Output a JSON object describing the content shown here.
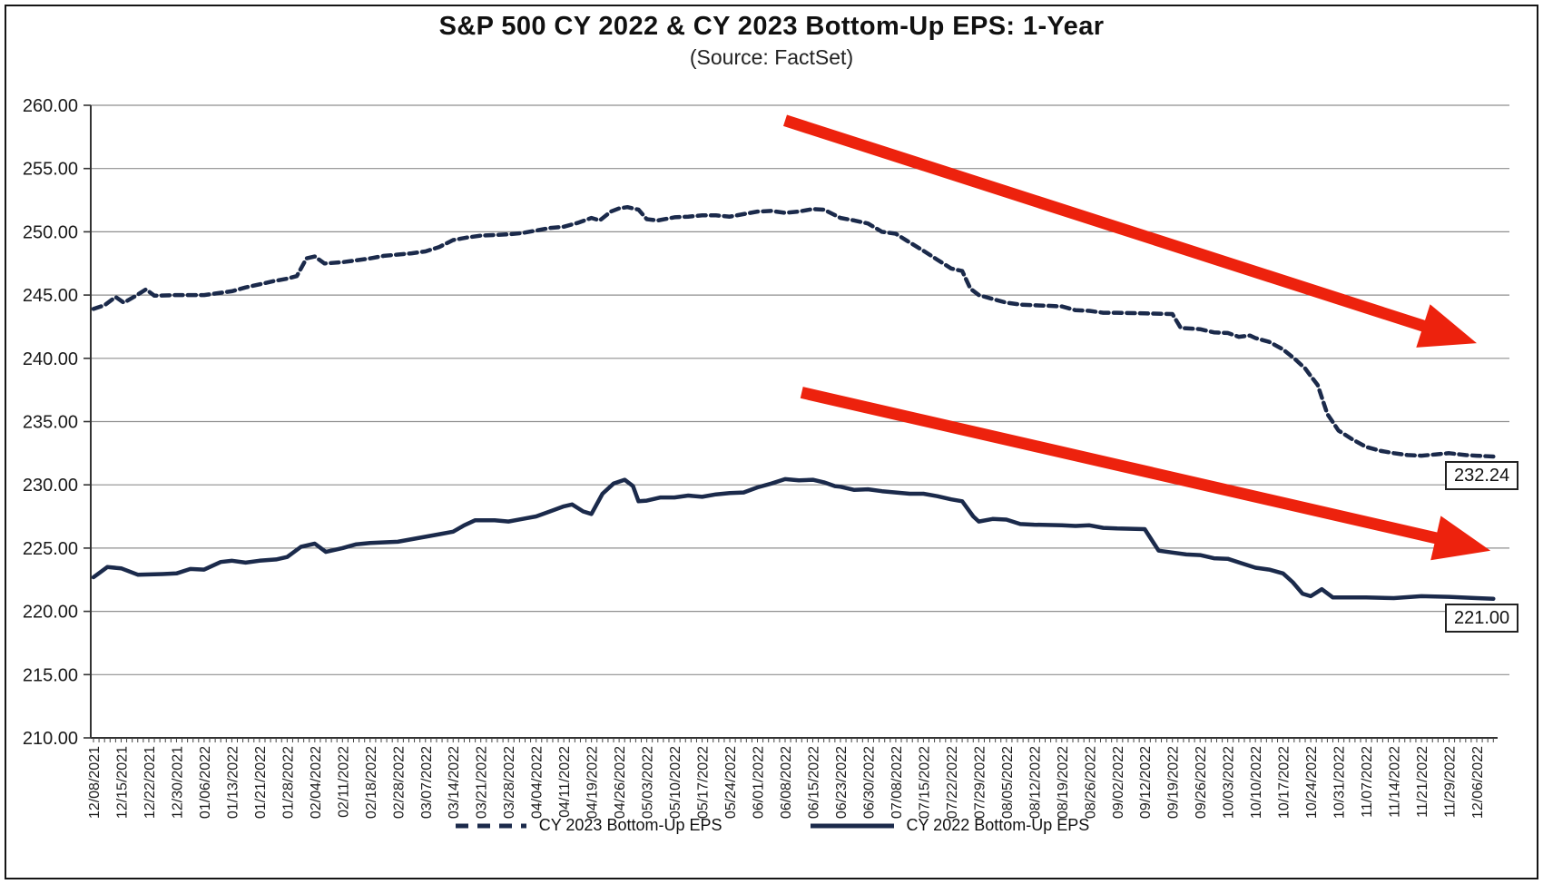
{
  "chart_data": {
    "type": "line",
    "title": "S&P 500 CY 2022 & CY 2023 Bottom-Up EPS: 1-Year",
    "subtitle": "(Source: FactSet)",
    "grid": "horizontal",
    "legend_position": "bottom",
    "y_axis": {
      "min": 210,
      "max": 260,
      "step": 5,
      "tick_format": "2dp",
      "tick_labels": [
        "260.00",
        "255.00",
        "250.00",
        "245.00",
        "240.00",
        "235.00",
        "230.00",
        "225.00",
        "220.00",
        "215.00",
        "210.00"
      ]
    },
    "x_axis": {
      "tick_style": "daily minor ticks, weekly labels rotated 90",
      "label_count": 51
    },
    "categories": [
      "12/08/2021",
      "12/15/2021",
      "12/22/2021",
      "12/30/2021",
      "01/06/2022",
      "01/13/2022",
      "01/21/2022",
      "01/28/2022",
      "02/04/2022",
      "02/11/2022",
      "02/18/2022",
      "02/28/2022",
      "03/07/2022",
      "03/14/2022",
      "03/21/2022",
      "03/28/2022",
      "04/04/2022",
      "04/11/2022",
      "04/19/2022",
      "04/26/2022",
      "05/03/2022",
      "05/10/2022",
      "05/17/2022",
      "05/24/2022",
      "06/01/2022",
      "06/08/2022",
      "06/15/2022",
      "06/23/2022",
      "06/30/2022",
      "07/08/2022",
      "07/15/2022",
      "07/22/2022",
      "07/29/2022",
      "08/05/2022",
      "08/12/2022",
      "08/19/2022",
      "08/26/2022",
      "09/02/2022",
      "09/12/2022",
      "09/19/2022",
      "09/26/2022",
      "10/03/2022",
      "10/10/2022",
      "10/17/2022",
      "10/24/2022",
      "10/31/2022",
      "11/07/2022",
      "11/14/2022",
      "11/21/2022",
      "11/29/2022",
      "12/06/2022"
    ],
    "series": [
      {
        "name": "CY 2023 Bottom-Up EPS",
        "style": "dashed",
        "color": "#1b2a4b",
        "end_label": "232.24",
        "points": [
          [
            1,
            243.9
          ],
          [
            1.4,
            244.2
          ],
          [
            1.8,
            244.85
          ],
          [
            2.1,
            244.4
          ],
          [
            2.5,
            244.9
          ],
          [
            2.9,
            245.45
          ],
          [
            3.2,
            244.95
          ],
          [
            4,
            245.0
          ],
          [
            5,
            245.0
          ],
          [
            5.5,
            245.15
          ],
          [
            6,
            245.3
          ],
          [
            6.5,
            245.6
          ],
          [
            7,
            245.85
          ],
          [
            7.5,
            246.1
          ],
          [
            8,
            246.3
          ],
          [
            8.35,
            246.5
          ],
          [
            8.7,
            247.9
          ],
          [
            9,
            248.05
          ],
          [
            9.35,
            247.5
          ],
          [
            10,
            247.6
          ],
          [
            10.5,
            247.75
          ],
          [
            11,
            247.9
          ],
          [
            11.5,
            248.1
          ],
          [
            12,
            248.2
          ],
          [
            12.5,
            248.3
          ],
          [
            13,
            248.45
          ],
          [
            13.5,
            248.8
          ],
          [
            14,
            249.35
          ],
          [
            14.5,
            249.55
          ],
          [
            15,
            249.7
          ],
          [
            15.5,
            249.75
          ],
          [
            16,
            249.8
          ],
          [
            16.5,
            249.9
          ],
          [
            17,
            250.1
          ],
          [
            17.5,
            250.3
          ],
          [
            18,
            250.4
          ],
          [
            18.5,
            250.7
          ],
          [
            19,
            251.1
          ],
          [
            19.3,
            250.9
          ],
          [
            19.7,
            251.6
          ],
          [
            20,
            251.85
          ],
          [
            20.3,
            251.95
          ],
          [
            20.7,
            251.75
          ],
          [
            21,
            251.0
          ],
          [
            21.4,
            250.9
          ],
          [
            22,
            251.15
          ],
          [
            22.5,
            251.2
          ],
          [
            23,
            251.3
          ],
          [
            23.5,
            251.3
          ],
          [
            24,
            251.2
          ],
          [
            24.5,
            251.4
          ],
          [
            25,
            251.6
          ],
          [
            25.5,
            251.65
          ],
          [
            26,
            251.5
          ],
          [
            26.5,
            251.6
          ],
          [
            27,
            251.8
          ],
          [
            27.4,
            251.75
          ],
          [
            28,
            251.1
          ],
          [
            28.5,
            250.9
          ],
          [
            29,
            250.65
          ],
          [
            29.5,
            250.0
          ],
          [
            30,
            249.85
          ],
          [
            30.4,
            249.3
          ],
          [
            31,
            248.5
          ],
          [
            31.5,
            247.8
          ],
          [
            32,
            247.1
          ],
          [
            32.4,
            246.9
          ],
          [
            32.7,
            245.5
          ],
          [
            33,
            245.0
          ],
          [
            33.4,
            244.75
          ],
          [
            34,
            244.4
          ],
          [
            34.5,
            244.25
          ],
          [
            35,
            244.2
          ],
          [
            35.5,
            244.15
          ],
          [
            36,
            244.1
          ],
          [
            36.5,
            243.8
          ],
          [
            37,
            243.75
          ],
          [
            37.5,
            243.6
          ],
          [
            38,
            243.6
          ],
          [
            39,
            243.55
          ],
          [
            40,
            243.5
          ],
          [
            40.3,
            242.4
          ],
          [
            41,
            242.3
          ],
          [
            41.5,
            242.05
          ],
          [
            42,
            242.0
          ],
          [
            42.4,
            241.7
          ],
          [
            42.8,
            241.8
          ],
          [
            43,
            241.6
          ],
          [
            43.5,
            241.3
          ],
          [
            44,
            240.7
          ],
          [
            44.4,
            240.0
          ],
          [
            44.8,
            239.2
          ],
          [
            45,
            238.6
          ],
          [
            45.25,
            237.9
          ],
          [
            45.6,
            235.6
          ],
          [
            46,
            234.3
          ],
          [
            46.5,
            233.6
          ],
          [
            47,
            233.0
          ],
          [
            47.5,
            232.7
          ],
          [
            48,
            232.5
          ],
          [
            48.5,
            232.35
          ],
          [
            49,
            232.3
          ],
          [
            49.5,
            232.4
          ],
          [
            50,
            232.5
          ],
          [
            50.6,
            232.35
          ],
          [
            51,
            232.3
          ],
          [
            51.6,
            232.24
          ]
        ]
      },
      {
        "name": "CY 2022 Bottom-Up EPS",
        "style": "solid",
        "color": "#1b2a4b",
        "end_label": "221.00",
        "points": [
          [
            1,
            222.7
          ],
          [
            1.5,
            223.5
          ],
          [
            2,
            223.4
          ],
          [
            2.6,
            222.9
          ],
          [
            3.5,
            222.95
          ],
          [
            4,
            223.0
          ],
          [
            4.5,
            223.35
          ],
          [
            5,
            223.3
          ],
          [
            5.6,
            223.9
          ],
          [
            6,
            224.0
          ],
          [
            6.5,
            223.85
          ],
          [
            7,
            224.0
          ],
          [
            7.6,
            224.1
          ],
          [
            8,
            224.3
          ],
          [
            8.5,
            225.1
          ],
          [
            9,
            225.35
          ],
          [
            9.4,
            224.7
          ],
          [
            10,
            225.0
          ],
          [
            10.5,
            225.3
          ],
          [
            11,
            225.4
          ],
          [
            12,
            225.5
          ],
          [
            12.5,
            225.7
          ],
          [
            13,
            225.9
          ],
          [
            13.5,
            226.1
          ],
          [
            14,
            226.3
          ],
          [
            14.4,
            226.8
          ],
          [
            14.8,
            227.2
          ],
          [
            15.5,
            227.2
          ],
          [
            16,
            227.1
          ],
          [
            16.5,
            227.3
          ],
          [
            17,
            227.5
          ],
          [
            17.5,
            227.9
          ],
          [
            18,
            228.3
          ],
          [
            18.3,
            228.45
          ],
          [
            18.7,
            227.9
          ],
          [
            19,
            227.7
          ],
          [
            19.4,
            229.3
          ],
          [
            19.8,
            230.1
          ],
          [
            20.2,
            230.4
          ],
          [
            20.5,
            229.9
          ],
          [
            20.7,
            228.7
          ],
          [
            21,
            228.75
          ],
          [
            21.5,
            229.0
          ],
          [
            22,
            229.0
          ],
          [
            22.5,
            229.15
          ],
          [
            23,
            229.05
          ],
          [
            23.5,
            229.25
          ],
          [
            24,
            229.35
          ],
          [
            24.5,
            229.4
          ],
          [
            25,
            229.8
          ],
          [
            25.5,
            230.1
          ],
          [
            26,
            230.45
          ],
          [
            26.5,
            230.35
          ],
          [
            27,
            230.4
          ],
          [
            27.4,
            230.2
          ],
          [
            27.8,
            229.9
          ],
          [
            28,
            229.85
          ],
          [
            28.5,
            229.6
          ],
          [
            29,
            229.65
          ],
          [
            29.5,
            229.5
          ],
          [
            30,
            229.4
          ],
          [
            30.5,
            229.3
          ],
          [
            31,
            229.3
          ],
          [
            31.5,
            229.1
          ],
          [
            32,
            228.85
          ],
          [
            32.4,
            228.7
          ],
          [
            32.8,
            227.5
          ],
          [
            33,
            227.1
          ],
          [
            33.5,
            227.3
          ],
          [
            34,
            227.25
          ],
          [
            34.5,
            226.9
          ],
          [
            35,
            226.85
          ],
          [
            36,
            226.8
          ],
          [
            36.5,
            226.75
          ],
          [
            37,
            226.8
          ],
          [
            37.5,
            226.6
          ],
          [
            38,
            226.55
          ],
          [
            39,
            226.5
          ],
          [
            39.5,
            224.8
          ],
          [
            40,
            224.65
          ],
          [
            40.5,
            224.5
          ],
          [
            41,
            224.45
          ],
          [
            41.5,
            224.2
          ],
          [
            42,
            224.15
          ],
          [
            42.5,
            223.8
          ],
          [
            43,
            223.45
          ],
          [
            43.5,
            223.3
          ],
          [
            44,
            223.0
          ],
          [
            44.35,
            222.3
          ],
          [
            44.7,
            221.4
          ],
          [
            45,
            221.2
          ],
          [
            45.4,
            221.75
          ],
          [
            45.8,
            221.1
          ],
          [
            46.5,
            221.1
          ],
          [
            47,
            221.1
          ],
          [
            48,
            221.05
          ],
          [
            49,
            221.2
          ],
          [
            50,
            221.15
          ],
          [
            51,
            221.05
          ],
          [
            51.6,
            221.0
          ]
        ]
      }
    ],
    "annotations": {
      "arrows": [
        {
          "type": "trend-arrow",
          "direction": "down-right",
          "color": "#ed220d",
          "from": {
            "week": 26.0,
            "value": 258.8
          },
          "to": {
            "week": 51.0,
            "value": 241.2
          }
        },
        {
          "type": "trend-arrow",
          "direction": "down-right",
          "color": "#ed220d",
          "from": {
            "week": 26.6,
            "value": 237.3
          },
          "to": {
            "week": 51.5,
            "value": 224.8
          }
        }
      ]
    }
  }
}
